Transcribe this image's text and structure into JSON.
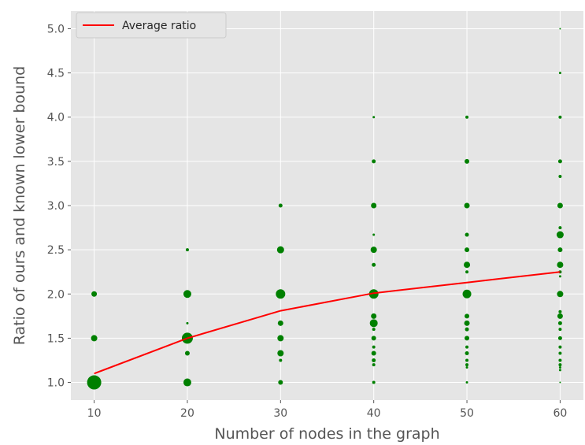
{
  "chart_data": {
    "type": "scatter",
    "xlabel": "Number of nodes in the graph",
    "ylabel": "Ratio of ours and known lower bound",
    "xlim": [
      7.5,
      62.5
    ],
    "ylim": [
      0.8,
      5.2
    ],
    "xticks": [
      10,
      20,
      30,
      40,
      50,
      60
    ],
    "yticks": [
      1.0,
      1.5,
      2.0,
      2.5,
      3.0,
      3.5,
      4.0,
      4.5,
      5.0
    ],
    "grid": true,
    "legend_position": "top-left",
    "colors": {
      "background": "#e5e5e5",
      "grid": "#ffffff",
      "points": "#008000",
      "line": "#ff0000"
    },
    "series": [
      {
        "name": "Average ratio",
        "kind": "line",
        "x": [
          10,
          20,
          30,
          40,
          50,
          60
        ],
        "y": [
          1.1,
          1.5,
          1.81,
          2.01,
          2.13,
          2.25
        ]
      },
      {
        "kind": "scatter",
        "points": [
          {
            "x": 10,
            "y": 1.0,
            "s": 9
          },
          {
            "x": 10,
            "y": 1.5,
            "s": 4
          },
          {
            "x": 10,
            "y": 2.0,
            "s": 3.5
          },
          {
            "x": 20,
            "y": 1.0,
            "s": 5
          },
          {
            "x": 20,
            "y": 1.33,
            "s": 3
          },
          {
            "x": 20,
            "y": 1.5,
            "s": 7
          },
          {
            "x": 20,
            "y": 1.67,
            "s": 1.5
          },
          {
            "x": 20,
            "y": 2.0,
            "s": 5
          },
          {
            "x": 20,
            "y": 2.5,
            "s": 2
          },
          {
            "x": 30,
            "y": 1.0,
            "s": 3
          },
          {
            "x": 30,
            "y": 1.25,
            "s": 2
          },
          {
            "x": 30,
            "y": 1.33,
            "s": 4
          },
          {
            "x": 30,
            "y": 1.5,
            "s": 4
          },
          {
            "x": 30,
            "y": 1.67,
            "s": 3.5
          },
          {
            "x": 30,
            "y": 2.0,
            "s": 6
          },
          {
            "x": 30,
            "y": 2.5,
            "s": 4.5
          },
          {
            "x": 30,
            "y": 3.0,
            "s": 2.5
          },
          {
            "x": 40,
            "y": 1.0,
            "s": 2
          },
          {
            "x": 40,
            "y": 1.2,
            "s": 2
          },
          {
            "x": 40,
            "y": 1.25,
            "s": 2.5
          },
          {
            "x": 40,
            "y": 1.33,
            "s": 3
          },
          {
            "x": 40,
            "y": 1.4,
            "s": 2
          },
          {
            "x": 40,
            "y": 1.5,
            "s": 3
          },
          {
            "x": 40,
            "y": 1.6,
            "s": 2
          },
          {
            "x": 40,
            "y": 1.67,
            "s": 5
          },
          {
            "x": 40,
            "y": 1.75,
            "s": 3.5
          },
          {
            "x": 40,
            "y": 2.0,
            "s": 6
          },
          {
            "x": 40,
            "y": 2.33,
            "s": 2.5
          },
          {
            "x": 40,
            "y": 2.5,
            "s": 4
          },
          {
            "x": 40,
            "y": 2.67,
            "s": 1.5
          },
          {
            "x": 40,
            "y": 3.0,
            "s": 3.5
          },
          {
            "x": 40,
            "y": 3.5,
            "s": 2.5
          },
          {
            "x": 40,
            "y": 4.0,
            "s": 1.5
          },
          {
            "x": 50,
            "y": 1.0,
            "s": 1.5
          },
          {
            "x": 50,
            "y": 1.17,
            "s": 1.5
          },
          {
            "x": 50,
            "y": 1.2,
            "s": 2
          },
          {
            "x": 50,
            "y": 1.25,
            "s": 2
          },
          {
            "x": 50,
            "y": 1.33,
            "s": 2.5
          },
          {
            "x": 50,
            "y": 1.4,
            "s": 2
          },
          {
            "x": 50,
            "y": 1.5,
            "s": 3
          },
          {
            "x": 50,
            "y": 1.6,
            "s": 2.5
          },
          {
            "x": 50,
            "y": 1.67,
            "s": 3.5
          },
          {
            "x": 50,
            "y": 1.75,
            "s": 3
          },
          {
            "x": 50,
            "y": 2.0,
            "s": 5.5
          },
          {
            "x": 50,
            "y": 2.25,
            "s": 2
          },
          {
            "x": 50,
            "y": 2.33,
            "s": 4
          },
          {
            "x": 50,
            "y": 2.5,
            "s": 3
          },
          {
            "x": 50,
            "y": 2.67,
            "s": 2.5
          },
          {
            "x": 50,
            "y": 3.0,
            "s": 3.5
          },
          {
            "x": 50,
            "y": 3.5,
            "s": 3
          },
          {
            "x": 50,
            "y": 4.0,
            "s": 2
          },
          {
            "x": 60,
            "y": 1.0,
            "s": 1
          },
          {
            "x": 60,
            "y": 1.14,
            "s": 1.5
          },
          {
            "x": 60,
            "y": 1.17,
            "s": 1.5
          },
          {
            "x": 60,
            "y": 1.2,
            "s": 2
          },
          {
            "x": 60,
            "y": 1.25,
            "s": 2
          },
          {
            "x": 60,
            "y": 1.33,
            "s": 2
          },
          {
            "x": 60,
            "y": 1.4,
            "s": 2
          },
          {
            "x": 60,
            "y": 1.5,
            "s": 2.5
          },
          {
            "x": 60,
            "y": 1.6,
            "s": 2
          },
          {
            "x": 60,
            "y": 1.67,
            "s": 2.5
          },
          {
            "x": 60,
            "y": 1.75,
            "s": 3.5
          },
          {
            "x": 60,
            "y": 1.8,
            "s": 2
          },
          {
            "x": 60,
            "y": 2.0,
            "s": 4
          },
          {
            "x": 60,
            "y": 2.2,
            "s": 1.5
          },
          {
            "x": 60,
            "y": 2.25,
            "s": 2
          },
          {
            "x": 60,
            "y": 2.33,
            "s": 4
          },
          {
            "x": 60,
            "y": 2.5,
            "s": 3
          },
          {
            "x": 60,
            "y": 2.67,
            "s": 4.5
          },
          {
            "x": 60,
            "y": 2.75,
            "s": 2
          },
          {
            "x": 60,
            "y": 3.0,
            "s": 3.5
          },
          {
            "x": 60,
            "y": 3.33,
            "s": 2
          },
          {
            "x": 60,
            "y": 3.5,
            "s": 2.5
          },
          {
            "x": 60,
            "y": 4.0,
            "s": 2
          },
          {
            "x": 60,
            "y": 4.5,
            "s": 1.5
          },
          {
            "x": 60,
            "y": 5.0,
            "s": 1
          }
        ]
      }
    ]
  }
}
